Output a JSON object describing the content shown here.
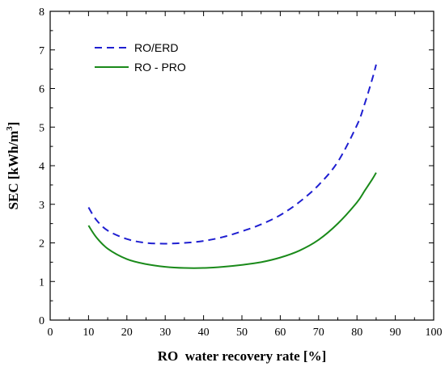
{
  "chart_data": {
    "type": "line",
    "title": "",
    "xlabel": "RO  water recovery rate [%]",
    "ylabel_main": "SEC [kWh/m",
    "ylabel_sup": "3",
    "ylabel_end": "]",
    "xlim": [
      0,
      100
    ],
    "ylim": [
      0,
      8
    ],
    "xticks": [
      0,
      10,
      20,
      30,
      40,
      50,
      60,
      70,
      80,
      90,
      100
    ],
    "yticks": [
      0,
      1,
      2,
      3,
      4,
      5,
      6,
      7,
      8
    ],
    "grid": false,
    "legend_position": "top-left",
    "series": [
      {
        "name": "RO/ERD",
        "color": "#1f1fd1",
        "style": "dashed",
        "x": [
          10,
          12,
          15,
          20,
          25,
          30,
          35,
          40,
          45,
          50,
          55,
          60,
          65,
          70,
          75,
          80,
          82,
          84,
          85
        ],
        "y": [
          2.92,
          2.6,
          2.32,
          2.1,
          2.0,
          1.98,
          2.0,
          2.05,
          2.15,
          2.3,
          2.48,
          2.72,
          3.06,
          3.5,
          4.1,
          5.05,
          5.6,
          6.25,
          6.62
        ]
      },
      {
        "name": "RO - PRO",
        "color": "#1a8a1a",
        "style": "solid",
        "x": [
          10,
          12,
          15,
          20,
          25,
          30,
          35,
          40,
          45,
          50,
          55,
          60,
          65,
          70,
          75,
          80,
          82,
          84,
          85
        ],
        "y": [
          2.45,
          2.15,
          1.85,
          1.58,
          1.45,
          1.38,
          1.35,
          1.35,
          1.38,
          1.43,
          1.5,
          1.62,
          1.8,
          2.08,
          2.5,
          3.05,
          3.35,
          3.65,
          3.82
        ]
      }
    ]
  }
}
